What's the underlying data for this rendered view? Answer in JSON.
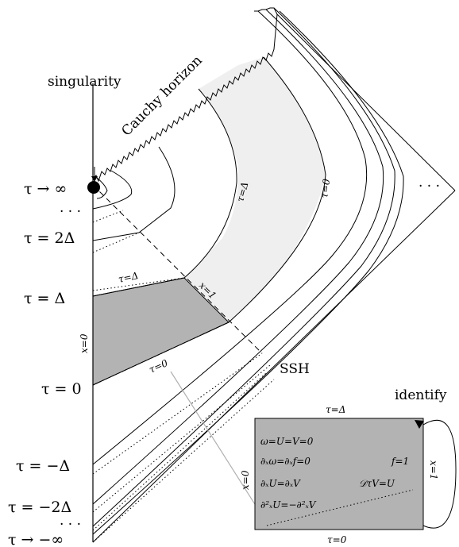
{
  "labels": {
    "singularity": "singularity",
    "cauchy_horizon": "Cauchy horizon",
    "ssh": "SSH",
    "identify": "identify",
    "ellipsis_right": "· · ·",
    "ellipsis_top": "· · ·",
    "ellipsis_bottom": "· · ·",
    "tau_inf": "τ → ∞",
    "tau_2delta": "τ = 2Δ",
    "tau_delta": "τ = Δ",
    "tau_zero": "τ = 0",
    "tau_mdelta": "τ = −Δ",
    "tau_m2delta": "τ = −2Δ",
    "tau_minf": "τ → −∞",
    "x0_axis": "x=0",
    "diag_tau_delta_small": "τ=Δ",
    "diag_tau_zero_small": "τ=0",
    "diag_x1": "x=1",
    "diag_tau_delta_upper": "τ=Δ",
    "diag_tau_zero_upper": "τ=0"
  },
  "box": {
    "top": "τ=Δ",
    "bottom": "τ=0",
    "left": "x=0",
    "right": "x=1",
    "eq1": "ω=U=V=0",
    "eq2": "∂ₓω=∂ₓf=0",
    "eq3": "∂ₓU=∂ₓV",
    "eq4": "∂²ₓU=−∂²ₓV",
    "eq5": "f=1",
    "eq6": "𝒟τV=U"
  },
  "colors": {
    "dark_region": "#b3b3b3",
    "light_region": "#efefef",
    "box_fill": "#b3b3b3",
    "arrow": "#b0b0b0"
  }
}
